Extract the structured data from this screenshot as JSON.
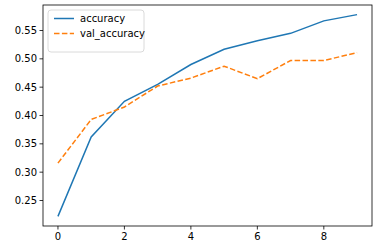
{
  "chart_data": {
    "type": "line",
    "x": [
      0,
      1,
      2,
      3,
      4,
      5,
      6,
      7,
      8,
      9
    ],
    "series": [
      {
        "name": "accuracy",
        "color": "#1f77b4",
        "line_style": "solid",
        "values": [
          0.222,
          0.362,
          0.425,
          0.455,
          0.49,
          0.517,
          0.532,
          0.545,
          0.567,
          0.578
        ]
      },
      {
        "name": "val_accuracy",
        "color": "#ff7f0e",
        "line_style": "dashed",
        "values": [
          0.316,
          0.393,
          0.415,
          0.452,
          0.466,
          0.487,
          0.465,
          0.497,
          0.497,
          0.511
        ]
      }
    ],
    "xlim": [
      -0.45,
      9.45
    ],
    "xticks": [
      0,
      2,
      4,
      6,
      8
    ],
    "ylim": [
      0.205,
      0.595
    ],
    "yticks": [
      0.25,
      {
        "value": 0.3,
        "label": "0.30"
      },
      0.35,
      {
        "value": 0.4,
        "label": "0.40"
      },
      0.45,
      {
        "value": 0.5,
        "label": "0.50"
      },
      0.55
    ],
    "grid": false,
    "legend": "upper left"
  }
}
